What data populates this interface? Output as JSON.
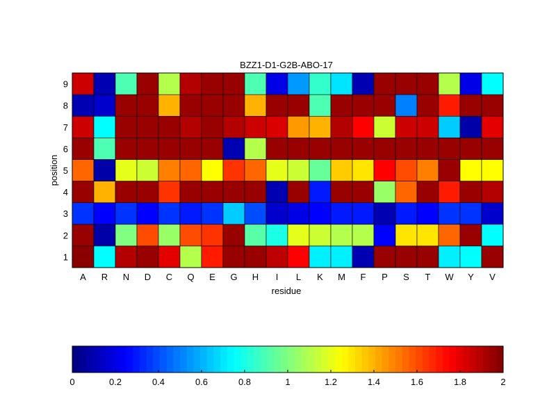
{
  "chart_data": {
    "type": "heatmap",
    "title": "BZZ1-D1-G2B-ABO-17",
    "xlabel": "residue",
    "ylabel": "position",
    "x_categories": [
      "A",
      "R",
      "N",
      "D",
      "C",
      "Q",
      "E",
      "G",
      "H",
      "I",
      "L",
      "K",
      "M",
      "F",
      "P",
      "S",
      "T",
      "W",
      "Y",
      "V"
    ],
    "y_categories": [
      "1",
      "2",
      "3",
      "4",
      "5",
      "6",
      "7",
      "8",
      "9"
    ],
    "colormap": "jet",
    "clim": [
      0,
      2
    ],
    "colorbar_ticks": [
      "0",
      "0.2",
      "0.4",
      "0.6",
      "0.8",
      "1",
      "1.2",
      "1.4",
      "1.6",
      "1.8",
      "2"
    ],
    "values": [
      [
        1.98,
        0.75,
        1.9,
        1.95,
        1.8,
        1.1,
        1.7,
        1.95,
        1.95,
        1.88,
        1.75,
        0.72,
        0.72,
        0.1,
        1.95,
        1.95,
        1.95,
        0.72,
        0.75,
        1.95
      ],
      [
        1.95,
        0.08,
        1.0,
        1.6,
        1.05,
        1.6,
        1.65,
        1.95,
        0.92,
        0.8,
        1.2,
        1.15,
        1.1,
        1.1,
        0.25,
        1.3,
        1.3,
        1.55,
        1.95,
        0.75
      ],
      [
        0.35,
        0.25,
        0.35,
        0.25,
        0.35,
        0.3,
        0.35,
        0.65,
        0.4,
        0.15,
        0.2,
        0.25,
        0.3,
        0.3,
        0.1,
        0.3,
        0.25,
        0.35,
        0.35,
        0.15
      ],
      [
        1.95,
        1.4,
        1.95,
        1.95,
        1.65,
        1.95,
        1.95,
        1.95,
        1.95,
        0.1,
        1.95,
        0.3,
        1.95,
        1.95,
        1.05,
        1.55,
        1.95,
        1.7,
        1.95,
        1.9
      ],
      [
        1.55,
        0.08,
        1.2,
        1.15,
        1.5,
        1.55,
        1.25,
        1.65,
        1.55,
        1.2,
        1.15,
        0.95,
        1.35,
        1.3,
        1.75,
        1.6,
        1.5,
        1.95,
        1.25,
        1.25
      ],
      [
        1.95,
        0.9,
        1.95,
        1.95,
        1.95,
        1.95,
        1.95,
        0.1,
        1.1,
        1.95,
        1.95,
        1.95,
        1.95,
        1.95,
        1.95,
        1.95,
        1.95,
        1.95,
        1.95,
        1.95
      ],
      [
        1.85,
        0.75,
        1.95,
        1.95,
        1.95,
        1.9,
        1.95,
        1.9,
        1.85,
        1.82,
        1.45,
        1.4,
        1.9,
        1.75,
        1.15,
        1.85,
        1.85,
        0.65,
        0.08,
        1.8
      ],
      [
        0.1,
        0.15,
        1.95,
        1.95,
        1.4,
        1.95,
        1.95,
        1.95,
        1.4,
        1.95,
        1.95,
        0.9,
        1.95,
        1.95,
        1.95,
        0.5,
        1.95,
        1.7,
        1.95,
        1.95
      ],
      [
        1.85,
        0.1,
        0.9,
        1.95,
        1.1,
        1.9,
        1.95,
        1.95,
        0.9,
        0.2,
        0.55,
        0.85,
        0.7,
        0.1,
        1.95,
        1.95,
        1.95,
        1.1,
        0.2,
        0.75
      ]
    ]
  }
}
